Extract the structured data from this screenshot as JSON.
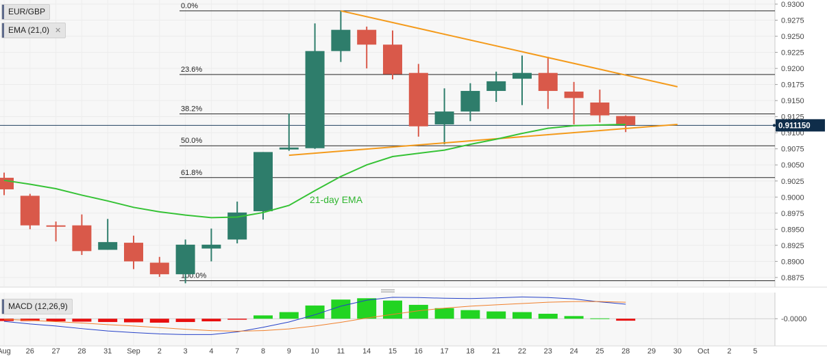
{
  "chart_data": {
    "type": "candlestick",
    "instrument_label": "EUR/GBP",
    "indicator_label": "EMA (21,0)",
    "macd_label": "MACD (12,26,9)",
    "annotation": "21-day EMA",
    "current_price_label": "0.911150",
    "current_price": 0.91115,
    "y_range": [
      0.886,
      0.93
    ],
    "y_ticks": [
      "0.9300",
      "0.9275",
      "0.9250",
      "0.9225",
      "0.9200",
      "0.9175",
      "0.9150",
      "0.9125",
      "0.9100",
      "0.9075",
      "0.9050",
      "0.9025",
      "0.9000",
      "0.8975",
      "0.8950",
      "0.8925",
      "0.8900",
      "0.8875"
    ],
    "x_labels": [
      "Aug",
      "26",
      "27",
      "28",
      "31",
      "Sep",
      "2",
      "3",
      "4",
      "7",
      "8",
      "9",
      "10",
      "11",
      "14",
      "15",
      "16",
      "17",
      "18",
      "21",
      "22",
      "23",
      "24",
      "25",
      "28",
      "29",
      "30",
      "Oct",
      "2",
      "5"
    ],
    "candles": [
      {
        "o": 0.903,
        "h": 0.9038,
        "l": 0.9003,
        "c": 0.9012
      },
      {
        "o": 0.9002,
        "h": 0.9005,
        "l": 0.895,
        "c": 0.8956
      },
      {
        "o": 0.8956,
        "h": 0.8962,
        "l": 0.8931,
        "c": 0.8954
      },
      {
        "o": 0.8956,
        "h": 0.8973,
        "l": 0.891,
        "c": 0.8916
      },
      {
        "o": 0.8918,
        "h": 0.8966,
        "l": 0.8918,
        "c": 0.893
      },
      {
        "o": 0.8929,
        "h": 0.894,
        "l": 0.8888,
        "c": 0.89
      },
      {
        "o": 0.8898,
        "h": 0.8907,
        "l": 0.8876,
        "c": 0.888
      },
      {
        "o": 0.888,
        "h": 0.8934,
        "l": 0.8866,
        "c": 0.8926
      },
      {
        "o": 0.892,
        "h": 0.8951,
        "l": 0.89,
        "c": 0.8926
      },
      {
        "o": 0.8934,
        "h": 0.8993,
        "l": 0.8928,
        "c": 0.8976
      },
      {
        "o": 0.8978,
        "h": 0.907,
        "l": 0.8965,
        "c": 0.907
      },
      {
        "o": 0.9074,
        "h": 0.913,
        "l": 0.9072,
        "c": 0.9077
      },
      {
        "o": 0.9076,
        "h": 0.927,
        "l": 0.9075,
        "c": 0.9227
      },
      {
        "o": 0.9227,
        "h": 0.929,
        "l": 0.921,
        "c": 0.926
      },
      {
        "o": 0.926,
        "h": 0.9265,
        "l": 0.92,
        "c": 0.9237
      },
      {
        "o": 0.9237,
        "h": 0.9259,
        "l": 0.9183,
        "c": 0.9191
      },
      {
        "o": 0.9193,
        "h": 0.9207,
        "l": 0.9094,
        "c": 0.911
      },
      {
        "o": 0.9113,
        "h": 0.9169,
        "l": 0.9082,
        "c": 0.9133
      },
      {
        "o": 0.9133,
        "h": 0.9177,
        "l": 0.9118,
        "c": 0.9165
      },
      {
        "o": 0.9165,
        "h": 0.9195,
        "l": 0.9148,
        "c": 0.918
      },
      {
        "o": 0.9184,
        "h": 0.922,
        "l": 0.9143,
        "c": 0.9193
      },
      {
        "o": 0.9193,
        "h": 0.9218,
        "l": 0.9137,
        "c": 0.9165
      },
      {
        "o": 0.9164,
        "h": 0.9179,
        "l": 0.9113,
        "c": 0.9154
      },
      {
        "o": 0.9147,
        "h": 0.9167,
        "l": 0.9116,
        "c": 0.9127
      },
      {
        "o": 0.9126,
        "h": 0.9127,
        "l": 0.9101,
        "c": 0.9112
      }
    ],
    "ema": [
      0.9026,
      0.902,
      0.9013,
      0.9003,
      0.8994,
      0.8984,
      0.8977,
      0.8972,
      0.8968,
      0.8969,
      0.8976,
      0.8987,
      0.901,
      0.9032,
      0.905,
      0.9063,
      0.9068,
      0.9073,
      0.9082,
      0.909,
      0.9099,
      0.9107,
      0.9111,
      0.9112,
      0.9113
    ],
    "fib_levels": [
      {
        "label": "0.0%",
        "price": 0.92895
      },
      {
        "label": "23.6%",
        "price": 0.91905
      },
      {
        "label": "38.2%",
        "price": 0.91293
      },
      {
        "label": "50.0%",
        "price": 0.90798
      },
      {
        "label": "61.8%",
        "price": 0.90303
      },
      {
        "label": "100.0%",
        "price": 0.887
      }
    ],
    "trendlines": [
      {
        "name": "resistance",
        "from": {
          "index": 13,
          "price": 0.92895
        },
        "to": {
          "index": 26,
          "price": 0.91715
        }
      },
      {
        "name": "support",
        "from": {
          "index": 11,
          "price": 0.9065
        },
        "to": {
          "index": 26,
          "price": 0.9113
        }
      }
    ],
    "macd": {
      "zero_label": "-0.0000",
      "histogram": [
        -0.0007,
        -0.0007,
        -0.0008,
        -0.0009,
        -0.001,
        -0.0011,
        -0.0012,
        -0.001,
        -0.0008,
        -0.0003,
        0.001,
        0.002,
        0.004,
        0.0058,
        0.0062,
        0.0055,
        0.0042,
        0.0032,
        0.0026,
        0.0022,
        0.002,
        0.0015,
        0.0008,
        0.0001,
        -0.0006
      ],
      "macd_line": [
        -0.0008,
        -0.0016,
        -0.0022,
        -0.003,
        -0.0037,
        -0.0042,
        -0.0046,
        -0.0048,
        -0.0048,
        -0.004,
        -0.0026,
        -0.001,
        0.0012,
        0.0038,
        0.0056,
        0.0065,
        0.0064,
        0.0062,
        0.0061,
        0.0063,
        0.0066,
        0.0064,
        0.006,
        0.0051,
        0.0044
      ],
      "signal_line": [
        -0.0002,
        -0.0005,
        -0.0009,
        -0.0013,
        -0.0018,
        -0.0022,
        -0.0027,
        -0.0032,
        -0.0036,
        -0.0038,
        -0.0036,
        -0.0031,
        -0.0022,
        -0.0011,
        0.0002,
        0.0013,
        0.0024,
        0.0032,
        0.0038,
        0.0042,
        0.0046,
        0.005,
        0.0052,
        0.0052,
        0.005
      ],
      "range": [
        -0.007,
        0.0075
      ]
    },
    "colors": {
      "up": "#2e7d6b",
      "down": "#d9594a",
      "ema": "#35c235",
      "trendline": "#f49a1a",
      "hist_pos": "#22d422",
      "hist_neg": "#e80f0f",
      "macd_line": "#2440c8",
      "signal_line": "#f07f2a",
      "price_tag": "#0f2d4a"
    }
  }
}
